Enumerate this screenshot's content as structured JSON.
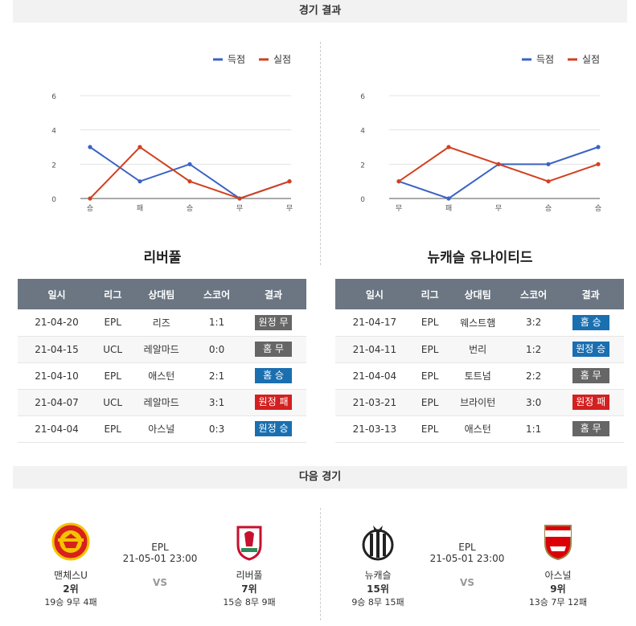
{
  "sections": {
    "results_title": "경기 결과",
    "next_title": "다음 경기"
  },
  "legend": {
    "scored": "득점",
    "conceded": "실점"
  },
  "colors": {
    "scored": "#3b63c4",
    "conceded": "#d2401f",
    "home": "#666666",
    "away_win": "#1a6fb0",
    "loss": "#d32020"
  },
  "chart_data": [
    {
      "type": "line",
      "categories": [
        "승",
        "패",
        "승",
        "무",
        "무"
      ],
      "yticks": [
        0,
        2,
        4,
        6
      ],
      "ylim": [
        0,
        6
      ],
      "series": [
        {
          "name": "득점",
          "values": [
            3,
            1,
            2,
            0,
            1
          ]
        },
        {
          "name": "실점",
          "values": [
            0,
            3,
            1,
            0,
            1
          ]
        }
      ]
    },
    {
      "type": "line",
      "categories": [
        "무",
        "패",
        "무",
        "승",
        "승"
      ],
      "yticks": [
        0,
        2,
        4,
        6
      ],
      "ylim": [
        0,
        6
      ],
      "series": [
        {
          "name": "득점",
          "values": [
            1,
            0,
            2,
            2,
            3
          ]
        },
        {
          "name": "실점",
          "values": [
            1,
            3,
            2,
            1,
            2
          ]
        }
      ]
    }
  ],
  "teams": {
    "left": {
      "title": "리버풀"
    },
    "right": {
      "title": "뉴캐슬 유나이티드"
    }
  },
  "table_headers": [
    "일시",
    "리그",
    "상대팀",
    "스코어",
    "결과"
  ],
  "left_rows": [
    {
      "date": "21-04-20",
      "league": "EPL",
      "opp": "리즈",
      "score": "1:1",
      "result": "원정 무",
      "color": "#666666"
    },
    {
      "date": "21-04-15",
      "league": "UCL",
      "opp": "레알마드",
      "score": "0:0",
      "result": "홈 무",
      "color": "#666666"
    },
    {
      "date": "21-04-10",
      "league": "EPL",
      "opp": "애스턴",
      "score": "2:1",
      "result": "홈 승",
      "color": "#1a6fb0"
    },
    {
      "date": "21-04-07",
      "league": "UCL",
      "opp": "레알마드",
      "score": "3:1",
      "result": "원정 패",
      "color": "#d32020"
    },
    {
      "date": "21-04-04",
      "league": "EPL",
      "opp": "아스널",
      "score": "0:3",
      "result": "원정 승",
      "color": "#1a6fb0"
    }
  ],
  "right_rows": [
    {
      "date": "21-04-17",
      "league": "EPL",
      "opp": "웨스트햄",
      "score": "3:2",
      "result": "홈 승",
      "color": "#1a6fb0"
    },
    {
      "date": "21-04-11",
      "league": "EPL",
      "opp": "번리",
      "score": "1:2",
      "result": "원정 승",
      "color": "#1a6fb0"
    },
    {
      "date": "21-04-04",
      "league": "EPL",
      "opp": "토트넘",
      "score": "2:2",
      "result": "홈 무",
      "color": "#666666"
    },
    {
      "date": "21-03-21",
      "league": "EPL",
      "opp": "브라이턴",
      "score": "3:0",
      "result": "원정 패",
      "color": "#d32020"
    },
    {
      "date": "21-03-13",
      "league": "EPL",
      "opp": "애스턴",
      "score": "1:1",
      "result": "홈 무",
      "color": "#666666"
    }
  ],
  "next_matches": [
    {
      "league": "EPL",
      "datetime": "21-05-01 23:00",
      "vs": "VS",
      "home": {
        "name": "맨체스U",
        "rank": "2위",
        "record": "19승 9무 4패",
        "logo": "manutd-crest-icon"
      },
      "away": {
        "name": "리버풀",
        "rank": "7위",
        "record": "15승 8무 9패",
        "logo": "liverpool-crest-icon"
      }
    },
    {
      "league": "EPL",
      "datetime": "21-05-01 23:00",
      "vs": "VS",
      "home": {
        "name": "뉴캐슬",
        "rank": "15위",
        "record": "9승 8무 15패",
        "logo": "newcastle-crest-icon"
      },
      "away": {
        "name": "아스널",
        "rank": "9위",
        "record": "13승 7무 12패",
        "logo": "arsenal-crest-icon"
      }
    }
  ]
}
